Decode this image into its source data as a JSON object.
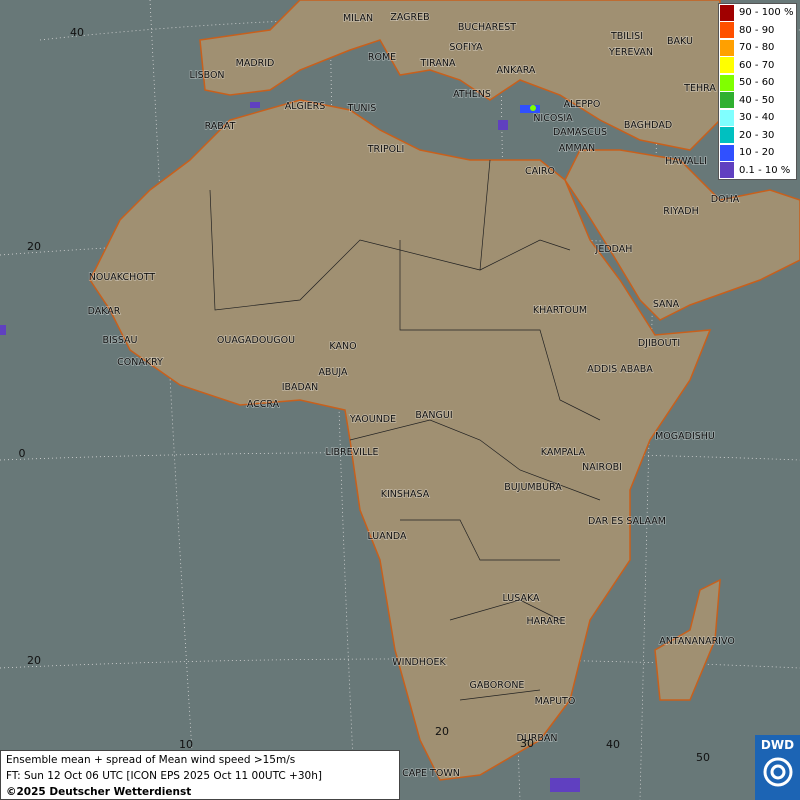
{
  "map": {
    "cities": [
      "MILAN",
      "ZAGREB",
      "BUCHAREST",
      "SOFIYA",
      "ROME",
      "TIRANA",
      "ANKARA",
      "TBILISI",
      "BAKU",
      "YEREVAN",
      "TEHRA",
      "LISBON",
      "MADRID",
      "ALGIERS",
      "TUNIS",
      "ATHENS",
      "ALEPPO",
      "NICOSIA",
      "BAGHDAD",
      "DAMASCUS",
      "AMMAN",
      "RABAT",
      "TRIPOLI",
      "CAIRO",
      "HAWALLI",
      "DOHA",
      "RIYADH",
      "JEDDAH",
      "NOUAKCHOTT",
      "SANA",
      "KHARTOUM",
      "DAKAR",
      "BISSAU",
      "DJIBOUTI",
      "OUAGADOUGOU",
      "KANO",
      "CONAKRY",
      "ADDIS ABABA",
      "ABUJA",
      "IBADAN",
      "ACCRA",
      "YAOUNDE",
      "BANGUI",
      "MOGADISHU",
      "LIBREVILLE",
      "KAMPALA",
      "NAIROBI",
      "KINSHASA",
      "BUJUMBURA",
      "DAR ES SALAAM",
      "LUANDA",
      "LUSAKA",
      "HARARE",
      "ANTANANARIVO",
      "WINDHOEK",
      "GABORONE",
      "MAPUTO",
      "DURBAN",
      "CAPE TOWN"
    ],
    "lat_labels": [
      "40",
      "20",
      "0",
      "20"
    ],
    "lon_labels": [
      "10",
      "20",
      "30",
      "40",
      "50"
    ]
  },
  "legend": {
    "entries": [
      {
        "label": "90 - 100 %",
        "color": "#a00000"
      },
      {
        "label": "80 - 90",
        "color": "#ff5000"
      },
      {
        "label": "70 - 80",
        "color": "#ffa000"
      },
      {
        "label": "60 - 70",
        "color": "#ffff00"
      },
      {
        "label": "50 - 60",
        "color": "#80ff00"
      },
      {
        "label": "40 - 50",
        "color": "#30b030"
      },
      {
        "label": "30 - 40",
        "color": "#80ffff"
      },
      {
        "label": "20 - 30",
        "color": "#00c0c0"
      },
      {
        "label": "10 - 20",
        "color": "#3050ff"
      },
      {
        "label": "0.1 - 10 %",
        "color": "#6040c0"
      }
    ]
  },
  "footer": {
    "lines": [
      "Ensemble mean + spread of Mean wind speed >15m/s",
      "FT: Sun 12 Oct 06 UTC [ICON EPS 2025 Oct 11 00UTC +30h]",
      "©2025 Deutscher Wetterdienst"
    ]
  },
  "logo": "DWD"
}
